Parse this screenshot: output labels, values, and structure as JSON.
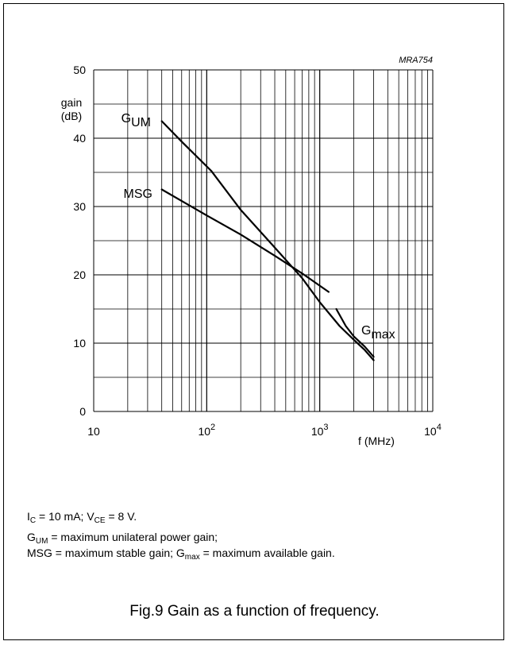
{
  "figure_code": "MRA754",
  "chart_data": {
    "type": "line",
    "x_scale": "log",
    "xlim": [
      10,
      10000
    ],
    "ylim": [
      0,
      50
    ],
    "grid": true,
    "xlabel": "f (MHz)",
    "ylabel": "gain (dB)",
    "ylabel_lines": [
      "gain",
      "(dB)"
    ],
    "x_ticks": [
      10,
      100,
      1000,
      10000
    ],
    "x_tick_labels": [
      {
        "base": "10",
        "exp": ""
      },
      {
        "base": "10",
        "exp": "2"
      },
      {
        "base": "10",
        "exp": "3"
      },
      {
        "base": "10",
        "exp": "4"
      }
    ],
    "y_ticks": [
      0,
      10,
      20,
      30,
      40,
      50
    ],
    "series": [
      {
        "name": "GUM",
        "label_base": "G",
        "label_sub": "UM",
        "x": [
          40,
          60,
          110,
          200,
          400,
          700,
          1000,
          1500,
          2000,
          2500,
          3000
        ],
        "y": [
          42.5,
          39.5,
          35.2,
          29.5,
          24.0,
          19.5,
          16.0,
          12.5,
          10.5,
          9.0,
          7.5
        ]
      },
      {
        "name": "MSG",
        "label_base": "MSG",
        "label_sub": "",
        "x": [
          40,
          100,
          200,
          400,
          700,
          1200
        ],
        "y": [
          32.5,
          28.7,
          25.9,
          22.8,
          20.2,
          17.5
        ]
      },
      {
        "name": "Gmax",
        "label_base": "G",
        "label_sub": "max",
        "x": [
          1400,
          1700,
          2000,
          2500,
          3000
        ],
        "y": [
          15.0,
          12.5,
          11.0,
          9.5,
          8.0
        ]
      }
    ]
  },
  "notes": {
    "conditions": {
      "ic_base": "I",
      "ic_sub": "C",
      "ic_val": " = 10 mA; V",
      "vce_sub": "CE",
      "vce_val": " = 8 V."
    },
    "gum_def": {
      "base": "G",
      "sub": "UM",
      "text": " = maximum unilateral power gain;"
    },
    "msg_line": {
      "msg_text": "MSG = maximum stable gain; G",
      "gmax_sub": "max",
      "gmax_text": " = maximum available gain."
    }
  },
  "caption": "Fig.9  Gain as a function of frequency."
}
